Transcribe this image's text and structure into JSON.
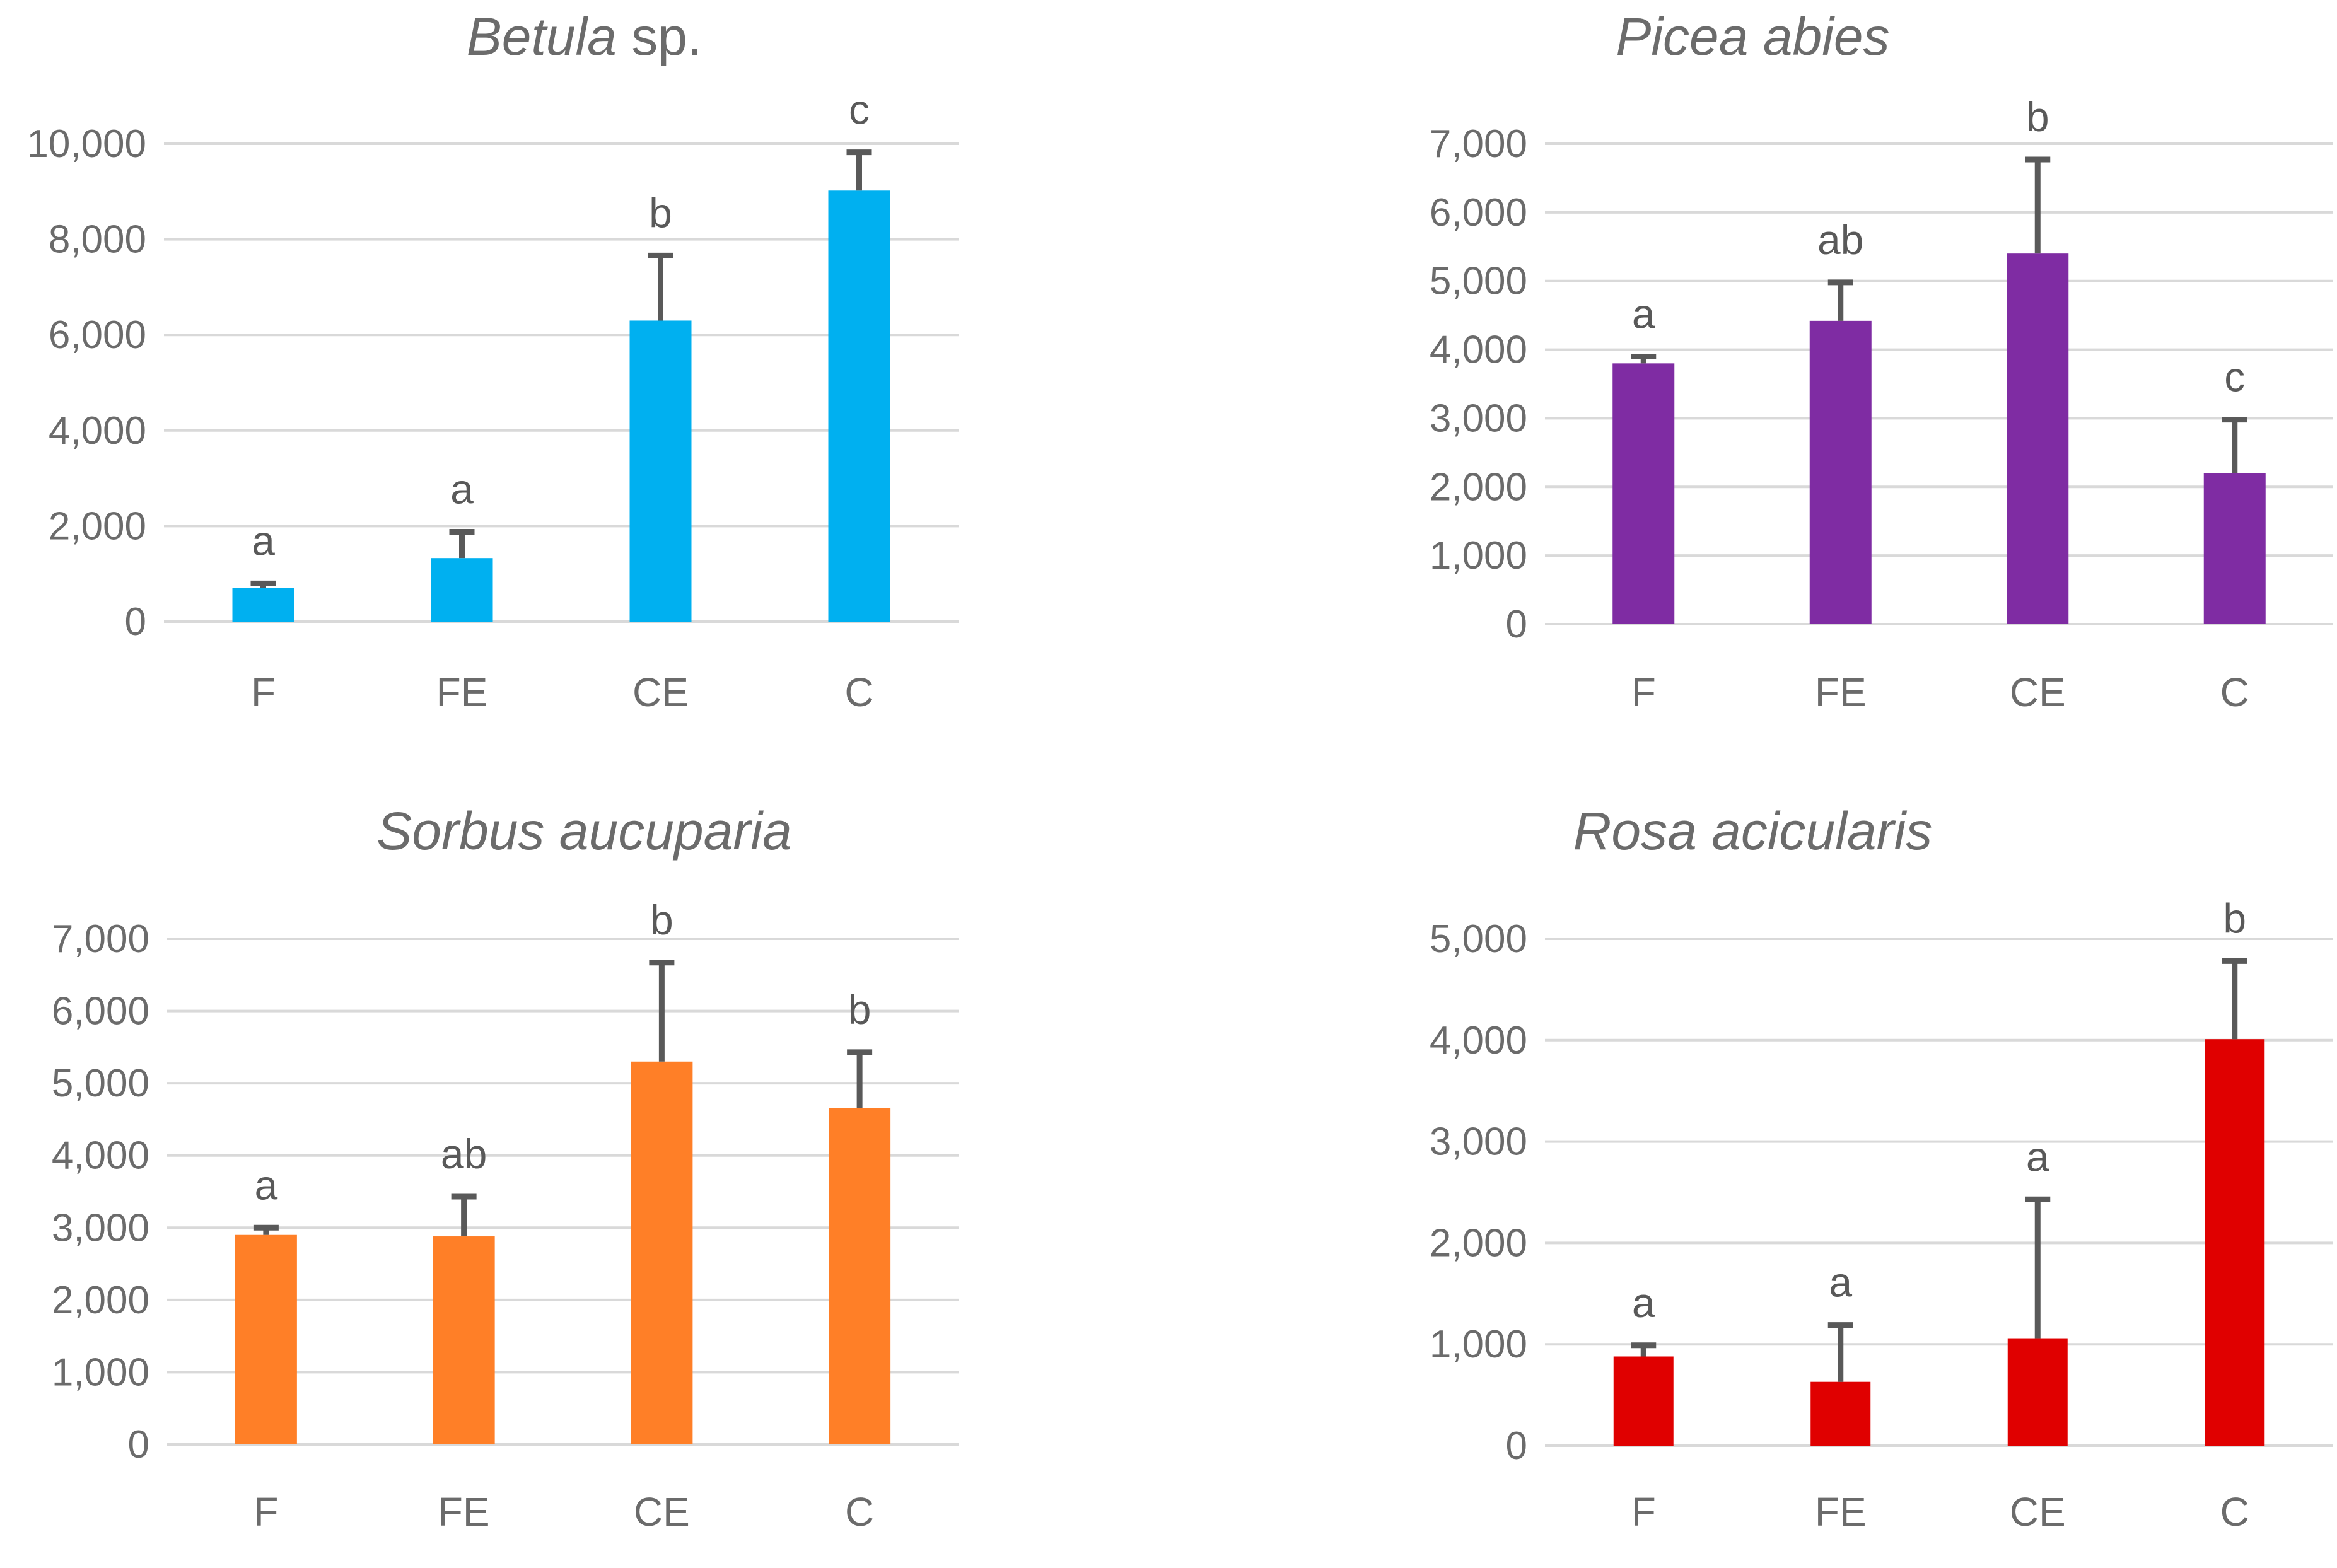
{
  "chart_data": [
    {
      "type": "bar",
      "title_italic": "Betula",
      "title_rest": " sp.",
      "categories": [
        "F",
        "FE",
        "CE",
        "C"
      ],
      "values": [
        700,
        1330,
        6300,
        9020
      ],
      "errors": [
        100,
        550,
        1360,
        800
      ],
      "significance": [
        "a",
        "a",
        "b",
        "c"
      ],
      "ylim": [
        0,
        10000
      ],
      "yticks": [
        0,
        2000,
        4000,
        6000,
        8000,
        10000
      ],
      "ytick_labels": [
        "0",
        "2,000",
        "4,000",
        "6,000",
        "8,000",
        "10,000"
      ],
      "color": "#00b0f0"
    },
    {
      "type": "bar",
      "title_italic": "Picea abies",
      "title_rest": "",
      "categories": [
        "F",
        "FE",
        "CE",
        "C"
      ],
      "values": [
        3800,
        4420,
        5400,
        2200
      ],
      "errors": [
        100,
        560,
        1370,
        780
      ],
      "significance": [
        "a",
        "ab",
        "b",
        "c"
      ],
      "ylim": [
        0,
        7000
      ],
      "yticks": [
        0,
        1000,
        2000,
        3000,
        4000,
        5000,
        6000,
        7000
      ],
      "ytick_labels": [
        "0",
        "1,000",
        "2,000",
        "3,000",
        "4,000",
        "5,000",
        "6,000",
        "7,000"
      ],
      "color": "#7f2ca3"
    },
    {
      "type": "bar",
      "title_italic": "Sorbus aucuparia",
      "title_rest": "",
      "categories": [
        "F",
        "FE",
        "CE",
        "C"
      ],
      "values": [
        2900,
        2880,
        5300,
        4660
      ],
      "errors": [
        100,
        550,
        1370,
        770
      ],
      "significance": [
        "a",
        "ab",
        "b",
        "b"
      ],
      "ylim": [
        0,
        7000
      ],
      "yticks": [
        0,
        1000,
        2000,
        3000,
        4000,
        5000,
        6000,
        7000
      ],
      "ytick_labels": [
        "0",
        "1,000",
        "2,000",
        "3,000",
        "4,000",
        "5,000",
        "6,000",
        "7,000"
      ],
      "color": "#ff7f27"
    },
    {
      "type": "bar",
      "title_italic": "Rosa acicularis",
      "title_rest": "",
      "categories": [
        "F",
        "FE",
        "CE",
        "C"
      ],
      "values": [
        880,
        630,
        1060,
        4010
      ],
      "errors": [
        110,
        560,
        1370,
        770
      ],
      "significance": [
        "a",
        "a",
        "a",
        "b"
      ],
      "ylim": [
        0,
        5000
      ],
      "yticks": [
        0,
        1000,
        2000,
        3000,
        4000,
        5000
      ],
      "ytick_labels": [
        "0",
        "1,000",
        "2,000",
        "3,000",
        "4,000",
        "5,000"
      ],
      "color": "#e00000"
    }
  ]
}
